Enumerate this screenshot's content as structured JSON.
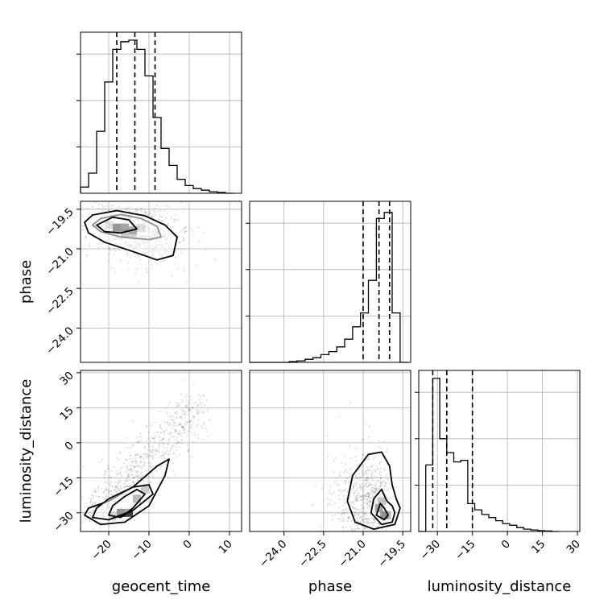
{
  "chart_data": {
    "type": "corner",
    "parameters": [
      "geocent_time",
      "phase",
      "luminosity_distance"
    ],
    "axis_labels": {
      "geocent_time": "geocent_time",
      "phase": "phase",
      "luminosity_distance": "luminosity_distance"
    },
    "grid": true,
    "ranges": {
      "geocent_time": [
        -27,
        13
      ],
      "phase": [
        -25.3,
        -19.2
      ],
      "luminosity_distance": [
        -38,
        31
      ]
    },
    "ticks": {
      "geocent_time": [
        {
          "v": -20,
          "label": "−20"
        },
        {
          "v": -10,
          "label": "−10"
        },
        {
          "v": 0,
          "label": "0"
        },
        {
          "v": 10,
          "label": "10"
        }
      ],
      "phase_x": [
        {
          "v": -24.0,
          "label": "−24.0"
        },
        {
          "v": -22.5,
          "label": "−22.5"
        },
        {
          "v": -21.0,
          "label": "−21.0"
        },
        {
          "v": -19.5,
          "label": "−19.5"
        }
      ],
      "phase_y": [
        {
          "v": -19.5,
          "label": "−19.5"
        },
        {
          "v": -21.0,
          "label": "−21.0"
        },
        {
          "v": -22.5,
          "label": "−22.5"
        },
        {
          "v": -24.0,
          "label": "−24.0"
        }
      ],
      "luminosity_distance": [
        {
          "v": -30,
          "label": "−30"
        },
        {
          "v": -15,
          "label": "−15"
        },
        {
          "v": 0,
          "label": "0"
        },
        {
          "v": 15,
          "label": "15"
        },
        {
          "v": 30,
          "label": "30"
        }
      ]
    },
    "histograms": {
      "geocent_time": {
        "bin_edges": [
          -27,
          -25,
          -23,
          -21,
          -19,
          -17,
          -15,
          -13,
          -11,
          -9,
          -7,
          -5,
          -3,
          -1,
          1,
          3,
          5,
          7,
          9,
          11
        ],
        "counts": [
          0.04,
          0.13,
          0.4,
          0.72,
          0.93,
          0.98,
          0.99,
          0.93,
          0.76,
          0.49,
          0.29,
          0.18,
          0.09,
          0.05,
          0.03,
          0.02,
          0.01,
          0.005,
          0.0
        ],
        "quantiles": [
          -18,
          -13.5,
          -8.5
        ]
      },
      "phase": {
        "bin_edges": [
          -25.3,
          -25.0,
          -24.7,
          -24.4,
          -24.1,
          -23.8,
          -23.5,
          -23.2,
          -22.9,
          -22.6,
          -22.3,
          -22.0,
          -21.7,
          -21.4,
          -21.1,
          -20.8,
          -20.5,
          -20.2,
          -19.9,
          -19.6,
          -19.3
        ],
        "counts": [
          0,
          0,
          0,
          0,
          0,
          0.005,
          0.01,
          0.02,
          0.03,
          0.05,
          0.07,
          0.1,
          0.15,
          0.23,
          0.32,
          0.53,
          0.93,
          0.97,
          0.32,
          0.0
        ],
        "quantiles": [
          -21.0,
          -20.4,
          -20.0
        ]
      },
      "luminosity_distance": {
        "bin_edges": [
          -38,
          -35,
          -32,
          -29,
          -26,
          -23,
          -20,
          -17,
          -14,
          -11,
          -8,
          -5,
          -2,
          1,
          4,
          7,
          10,
          13,
          16,
          19,
          22
        ],
        "counts": [
          0,
          0.43,
          0.99,
          0.6,
          0.51,
          0.45,
          0.46,
          0.18,
          0.14,
          0.11,
          0.09,
          0.07,
          0.05,
          0.04,
          0.025,
          0.015,
          0.01,
          0.005,
          0.003,
          0.0
        ],
        "quantiles": [
          -32,
          -26,
          -15
        ]
      }
    },
    "joint": [
      {
        "x": "geocent_time",
        "y": "phase",
        "center": [
          -14,
          -20.3
        ],
        "contours": [
          [
            [
              -24,
              -20.1
            ],
            [
              -22,
              -19.85
            ],
            [
              -17,
              -19.7
            ],
            [
              -12,
              -19.85
            ],
            [
              -8,
              -20.15
            ],
            [
              -7,
              -20.55
            ],
            [
              -10,
              -20.65
            ],
            [
              -17,
              -20.55
            ],
            [
              -22,
              -20.35
            ]
          ],
          [
            [
              -26,
              -20.0
            ],
            [
              -24,
              -19.72
            ],
            [
              -18,
              -19.55
            ],
            [
              -11,
              -19.75
            ],
            [
              -6,
              -20.1
            ],
            [
              -3,
              -20.55
            ],
            [
              -4,
              -21.25
            ],
            [
              -8,
              -21.42
            ],
            [
              -14,
              -21.1
            ],
            [
              -21,
              -20.75
            ],
            [
              -25,
              -20.4
            ]
          ],
          [
            [
              -23,
              -20.1
            ],
            [
              -19,
              -19.8
            ],
            [
              -15,
              -19.9
            ],
            [
              -13,
              -20.25
            ],
            [
              -17,
              -20.4
            ],
            [
              -21,
              -20.35
            ]
          ]
        ],
        "dense_cells": [
          [
            -18,
            -20.2
          ],
          [
            -16,
            -20.2
          ],
          [
            -14,
            -20.3
          ],
          [
            -16,
            -20.4
          ],
          [
            -14,
            -20.4
          ],
          [
            -12,
            -20.2
          ],
          [
            -20,
            -20.1
          ]
        ]
      },
      {
        "x": "geocent_time",
        "y": "luminosity_distance",
        "center": [
          -17,
          -30
        ],
        "contours": [
          [
            [
              -26,
              -31
            ],
            [
              -22,
              -35
            ],
            [
              -16,
              -34
            ],
            [
              -10,
              -27
            ],
            [
              -6,
              -14
            ],
            [
              -5,
              -7
            ],
            [
              -8,
              -10
            ],
            [
              -14,
              -19
            ],
            [
              -20,
              -25
            ],
            [
              -25,
              -28
            ]
          ],
          [
            [
              -24,
              -32
            ],
            [
              -20,
              -33
            ],
            [
              -14,
              -29
            ],
            [
              -9,
              -22
            ],
            [
              -10,
              -18
            ],
            [
              -14,
              -19
            ],
            [
              -20,
              -24
            ],
            [
              -23,
              -28
            ]
          ],
          [
            [
              -20,
              -31
            ],
            [
              -17,
              -32
            ],
            [
              -14,
              -28
            ],
            [
              -11,
              -22
            ],
            [
              -13,
              -20
            ],
            [
              -16,
              -23
            ],
            [
              -19,
              -27
            ]
          ]
        ],
        "dense_cells": [
          [
            -17,
            -30
          ],
          [
            -15,
            -30
          ],
          [
            -13,
            -24
          ],
          [
            -11,
            -20
          ],
          [
            -19,
            -31
          ]
        ]
      },
      {
        "x": "phase",
        "y": "luminosity_distance",
        "center": [
          -20.2,
          -31
        ],
        "contours": [
          [
            [
              -21.6,
              -25
            ],
            [
              -21.4,
              -14
            ],
            [
              -20.8,
              -5
            ],
            [
              -20.3,
              -4
            ],
            [
              -20.0,
              -10
            ],
            [
              -19.9,
              -18
            ],
            [
              -19.75,
              -24
            ],
            [
              -19.6,
              -28
            ],
            [
              -19.8,
              -35
            ],
            [
              -20.6,
              -37
            ],
            [
              -21.3,
              -34
            ]
          ],
          [
            [
              -20.7,
              -30
            ],
            [
              -20.6,
              -24
            ],
            [
              -20.3,
              -20
            ],
            [
              -20.1,
              -25
            ],
            [
              -19.9,
              -27
            ],
            [
              -19.8,
              -30
            ],
            [
              -19.9,
              -34
            ],
            [
              -20.3,
              -35
            ]
          ],
          [
            [
              -20.5,
              -31
            ],
            [
              -20.35,
              -26
            ],
            [
              -20.2,
              -28
            ],
            [
              -20.05,
              -31
            ],
            [
              -20.2,
              -33
            ]
          ]
        ],
        "dense_cells": [
          [
            -20.2,
            -31
          ],
          [
            -20.4,
            -28
          ],
          [
            -20.1,
            -31
          ],
          [
            -20.3,
            -25
          ]
        ]
      }
    ]
  }
}
